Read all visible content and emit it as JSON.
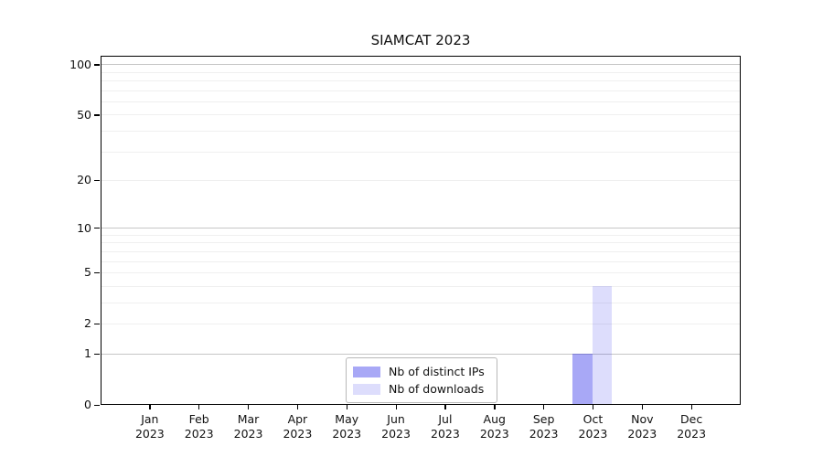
{
  "chart_data": {
    "type": "bar",
    "title": "SIAMCAT 2023",
    "categories": [
      "Jan 2023",
      "Feb 2023",
      "Mar 2023",
      "Apr 2023",
      "May 2023",
      "Jun 2023",
      "Jul 2023",
      "Aug 2023",
      "Sep 2023",
      "Oct 2023",
      "Nov 2023",
      "Dec 2023"
    ],
    "series": [
      {
        "name": "Nb of distinct IPs",
        "color": "#0000e6",
        "alpha": 0.34,
        "values": [
          0,
          0,
          0,
          0,
          0,
          0,
          0,
          0,
          0,
          1,
          0,
          0
        ]
      },
      {
        "name": "Nb of downloads",
        "color": "#0000e6",
        "alpha": 0.135,
        "values": [
          0,
          0,
          0,
          0,
          0,
          0,
          0,
          0,
          0,
          4,
          0,
          0
        ]
      }
    ],
    "xlabel": "",
    "ylabel": "",
    "yscale": "log1p",
    "ylim": [
      0,
      113
    ],
    "yticks": [
      0,
      1,
      2,
      5,
      10,
      20,
      50,
      100
    ],
    "ytick_labels": [
      "0",
      "1",
      "2",
      "5",
      "10",
      "20",
      "50",
      "100"
    ],
    "y_gridlines_major": [
      1,
      10,
      100
    ],
    "y_gridlines_minor": [
      2,
      3,
      4,
      5,
      6,
      7,
      8,
      9,
      20,
      30,
      40,
      50,
      60,
      70,
      80,
      90
    ],
    "grid": "horizontal",
    "bar_width_fraction": 0.4,
    "legend_position": "lower center"
  },
  "legend": {
    "items": [
      {
        "label": "Nb of distinct IPs",
        "swatch": "rgba(0,0,230,0.34)"
      },
      {
        "label": "Nb of downloads",
        "swatch": "rgba(0,0,230,0.135)"
      }
    ]
  },
  "colors": {
    "bar_distinct_ips": "#a8a8f5",
    "bar_downloads": "#dcdcf9",
    "grid_major": "#c6c6c6",
    "grid_minor": "#efefef",
    "axis": "#000000",
    "background": "#ffffff"
  }
}
